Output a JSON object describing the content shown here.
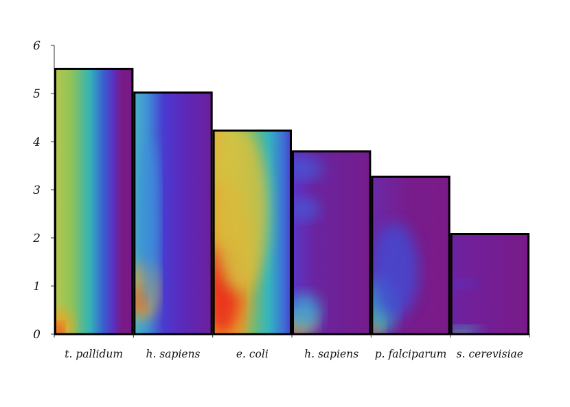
{
  "chart_data": {
    "type": "bar",
    "categories": [
      "t. pallidum",
      "h. sapiens",
      "e. coli",
      "h. sapiens",
      "p. falciparum",
      "s. cerevisiae"
    ],
    "values": [
      5.53,
      5.04,
      4.25,
      3.82,
      3.29,
      2.1
    ],
    "title": "",
    "xlabel": "",
    "ylabel": "",
    "ylim": [
      0,
      6
    ],
    "yticks": [
      "0",
      "1",
      "2",
      "3",
      "4",
      "5",
      "6"
    ],
    "grid": false,
    "legend": "none",
    "bar_outline_color": "#000000",
    "gradient_colors": [
      "#e8231e",
      "#f6a020",
      "#b9c94a",
      "#2fb8b8",
      "#3f46cf",
      "#7a1a86"
    ]
  }
}
